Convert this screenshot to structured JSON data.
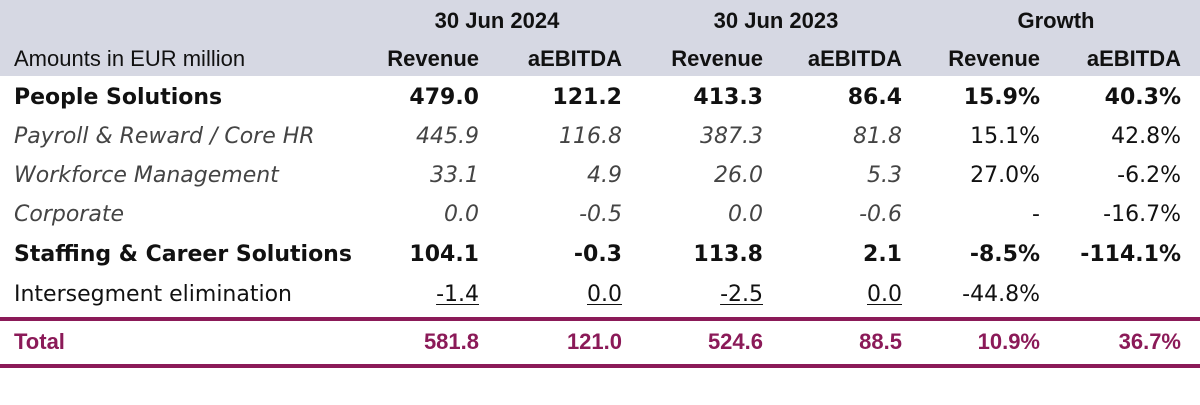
{
  "header": {
    "periods": [
      "30 Jun 2024",
      "30 Jun 2023",
      "Growth"
    ],
    "row_label": "Amounts in EUR million",
    "columns": [
      "Revenue",
      "aEBITDA",
      "Revenue",
      "aEBITDA",
      "Revenue",
      "aEBITDA"
    ]
  },
  "rows": [
    {
      "label": "People Solutions",
      "values": [
        "479.0",
        "121.2",
        "413.3",
        "86.4",
        "15.9%",
        "40.3%"
      ]
    },
    {
      "label": "Payroll & Reward / Core HR",
      "values": [
        "445.9",
        "116.8",
        "387.3",
        "81.8",
        "15.1%",
        "42.8%"
      ]
    },
    {
      "label": "Workforce Management",
      "values": [
        "33.1",
        "4.9",
        "26.0",
        "5.3",
        "27.0%",
        "-6.2%"
      ]
    },
    {
      "label": "Corporate",
      "values": [
        "0.0",
        "-0.5",
        "0.0",
        "-0.6",
        "-",
        "-16.7%"
      ]
    },
    {
      "label": "Staffing & Career Solutions",
      "values": [
        "104.1",
        "-0.3",
        "113.8",
        "2.1",
        "-8.5%",
        "-114.1%"
      ]
    },
    {
      "label": "Intersegment elimination",
      "values": [
        "-1.4",
        "0.0",
        "-2.5",
        "0.0",
        "-44.8%",
        ""
      ]
    }
  ],
  "total": {
    "label": "Total",
    "values": [
      "581.8",
      "121.0",
      "524.6",
      "88.5",
      "10.9%",
      "36.7%"
    ]
  },
  "colors": {
    "header_bg": "#d6d8e3",
    "accent": "#8b1a58"
  }
}
